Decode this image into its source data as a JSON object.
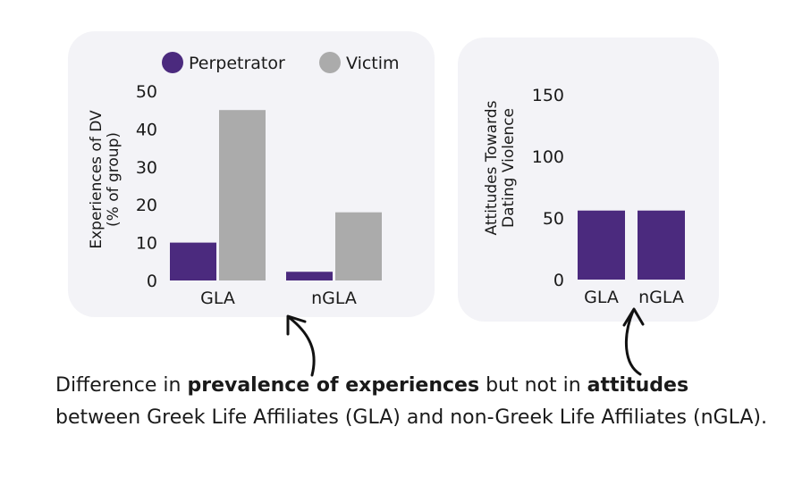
{
  "colors": {
    "perpetrator": "#4b2a7e",
    "victim": "#ababab",
    "panel_bg": "#f3f3f7",
    "text": "#1a1a1a"
  },
  "chart_data": [
    {
      "type": "bar",
      "categories": [
        "GLA",
        "nGLA"
      ],
      "series": [
        {
          "name": "Perpetrator",
          "values": [
            10,
            2.3
          ],
          "color": "#4b2a7e"
        },
        {
          "name": "Victim",
          "values": [
            45,
            18
          ],
          "color": "#ababab"
        }
      ],
      "ylabel_line1": "Experiences of DV",
      "ylabel_line2": "(% of group)",
      "ylim": [
        0,
        50
      ],
      "yticks": [
        0,
        10,
        20,
        30,
        40,
        50
      ],
      "legend": "top",
      "grid": false
    },
    {
      "type": "bar",
      "categories": [
        "GLA",
        "nGLA"
      ],
      "series": [
        {
          "values": [
            56,
            56
          ],
          "color": "#4b2a7e"
        }
      ],
      "ylabel_line1": "Attitudes Towards",
      "ylabel_line2": "Dating Violence",
      "ylim": [
        0,
        150
      ],
      "yticks": [
        0,
        50,
        100,
        150
      ],
      "legend": "none",
      "grid": false
    }
  ],
  "caption": {
    "part1": "Difference in ",
    "bold1": "prevalence of experiences",
    "part2": " but not in ",
    "bold2": "attitudes",
    "part3": " between Greek Life Affiliates (GLA) and non-Greek Life Affiliates (nGLA)."
  }
}
